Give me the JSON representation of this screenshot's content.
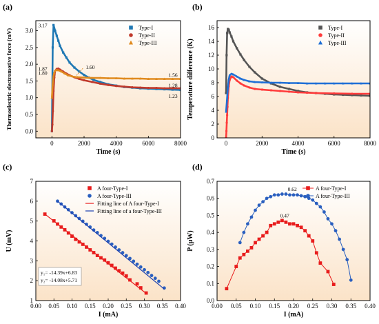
{
  "chart_data": [
    {
      "panel": "(a)",
      "type": "scatter",
      "xlabel": "Time (s)",
      "ylabel": "Thermoelectric electromotive force (mV)",
      "xlim": [
        -1000,
        8000
      ],
      "ylim": [
        -0.2,
        3.3
      ],
      "xticks": [
        0,
        2000,
        4000,
        6000,
        8000
      ],
      "yticks": [
        0.0,
        0.5,
        1.0,
        1.5,
        2.0,
        2.5,
        3.0
      ],
      "legend_position": "top-right",
      "annotations": [
        "3.17",
        "1.87",
        "1.80",
        "1.60",
        "1.56",
        "1.28",
        "1.23"
      ],
      "series": [
        {
          "name": "Type-I",
          "marker": "square",
          "color": "#1f78b4",
          "x": [
            0,
            50,
            100,
            200,
            300,
            400,
            500,
            700,
            900,
            1100,
            1400,
            1700,
            2000,
            2300,
            2600,
            3000,
            3500,
            4000,
            4500,
            5000,
            5500,
            6000,
            6500,
            7000,
            7500,
            8000
          ],
          "y": [
            0.0,
            2.5,
            3.17,
            3.0,
            2.85,
            2.7,
            2.55,
            2.35,
            2.2,
            2.05,
            1.9,
            1.78,
            1.68,
            1.6,
            1.53,
            1.47,
            1.4,
            1.36,
            1.32,
            1.3,
            1.28,
            1.27,
            1.26,
            1.25,
            1.24,
            1.23
          ]
        },
        {
          "name": "Type-II",
          "marker": "circle",
          "color": "#c0392b",
          "x": [
            0,
            30,
            60,
            100,
            150,
            200,
            300,
            400,
            500,
            700,
            900,
            1100,
            1400,
            1700,
            2000,
            2500,
            3000,
            3500,
            4000,
            4500,
            5000,
            5500,
            6000,
            6500,
            7000,
            7500,
            8000
          ],
          "y": [
            0.0,
            0.2,
            0.6,
            1.2,
            1.6,
            1.8,
            1.86,
            1.87,
            1.84,
            1.78,
            1.72,
            1.67,
            1.61,
            1.56,
            1.52,
            1.47,
            1.42,
            1.38,
            1.35,
            1.33,
            1.31,
            1.3,
            1.29,
            1.29,
            1.28,
            1.28,
            1.28
          ]
        },
        {
          "name": "Type-III",
          "marker": "triangle",
          "color": "#e08a1e",
          "x": [
            0,
            50,
            100,
            150,
            200,
            300,
            400,
            600,
            800,
            1000,
            1300,
            1600,
            2000,
            2500,
            3000,
            3500,
            4000,
            4500,
            5000,
            5500,
            6000,
            6500,
            7000,
            7500,
            8000
          ],
          "y": [
            1.0,
            1.4,
            1.65,
            1.75,
            1.8,
            1.83,
            1.82,
            1.78,
            1.72,
            1.67,
            1.63,
            1.61,
            1.6,
            1.59,
            1.59,
            1.58,
            1.58,
            1.57,
            1.57,
            1.57,
            1.56,
            1.56,
            1.56,
            1.56,
            1.56
          ]
        }
      ]
    },
    {
      "panel": "(b)",
      "type": "scatter",
      "xlabel": "Time (s)",
      "ylabel": "Temperature difference (K)",
      "xlim": [
        -500,
        8000
      ],
      "ylim": [
        0,
        17
      ],
      "xticks": [
        0,
        2000,
        4000,
        6000,
        8000
      ],
      "yticks": [
        0,
        2,
        4,
        6,
        8,
        10,
        12,
        14,
        16
      ],
      "legend_position": "top-right",
      "series": [
        {
          "name": "Type-I",
          "marker": "square",
          "color": "#555555",
          "x": [
            0,
            30,
            60,
            100,
            150,
            200,
            300,
            400,
            600,
            800,
            1000,
            1300,
            1600,
            2000,
            2500,
            3000,
            3500,
            4000,
            4500,
            5000,
            5500,
            6000,
            6500,
            7000,
            7500,
            8000
          ],
          "y": [
            6.5,
            12,
            15.2,
            15.8,
            15.7,
            15.3,
            14.7,
            14.0,
            13.0,
            12.1,
            11.3,
            10.3,
            9.5,
            8.6,
            7.9,
            7.4,
            7.1,
            6.8,
            6.6,
            6.5,
            6.4,
            6.3,
            6.25,
            6.2,
            6.15,
            6.1
          ]
        },
        {
          "name": "Type-II",
          "marker": "circle",
          "color": "#ff3b3b",
          "x": [
            0,
            20,
            40,
            60,
            80,
            100,
            150,
            200,
            300,
            400,
            600,
            800,
            1000,
            1300,
            1600,
            2000,
            2500,
            3000,
            3500,
            4000,
            4500,
            5000,
            6000,
            7000,
            8000
          ],
          "y": [
            0.0,
            1.0,
            2.2,
            3.3,
            4.5,
            5.8,
            7.5,
            8.4,
            8.9,
            8.8,
            8.3,
            7.9,
            7.6,
            7.3,
            7.1,
            7.0,
            6.9,
            6.8,
            6.7,
            6.6,
            6.55,
            6.5,
            6.45,
            6.4,
            6.4
          ]
        },
        {
          "name": "Type-III",
          "marker": "triangle",
          "color": "#1f6fd6",
          "x": [
            0,
            50,
            100,
            150,
            200,
            300,
            400,
            600,
            800,
            1000,
            1300,
            1600,
            2000,
            2500,
            3000,
            3500,
            4000,
            4500,
            5000,
            5500,
            6000,
            6500,
            7000,
            7500,
            8000
          ],
          "y": [
            3.8,
            5.5,
            7.3,
            8.5,
            9.1,
            9.3,
            9.2,
            8.9,
            8.6,
            8.4,
            8.2,
            8.1,
            8.05,
            8.0,
            8.0,
            7.95,
            7.95,
            7.9,
            7.9,
            7.9,
            7.9,
            7.9,
            7.9,
            7.9,
            7.9
          ]
        }
      ]
    },
    {
      "panel": "(c)",
      "type": "scatter",
      "xlabel": "I (mA)",
      "ylabel": "U (mV)",
      "xlim": [
        0.0,
        0.4
      ],
      "ylim": [
        1,
        7
      ],
      "xticks": [
        0.0,
        0.05,
        0.1,
        0.15,
        0.2,
        0.25,
        0.3,
        0.35,
        0.4
      ],
      "yticks": [
        1,
        2,
        3,
        4,
        5,
        6,
        7
      ],
      "legend_position": "top-right",
      "equations": [
        "y₁= -14.39x+6.83",
        "y₂= -14.08x+5.71"
      ],
      "series": [
        {
          "name": "A four-Type-I",
          "marker": "square",
          "color": "#e81c1c",
          "x": [
            0.025,
            0.05,
            0.06,
            0.07,
            0.08,
            0.09,
            0.1,
            0.11,
            0.12,
            0.13,
            0.14,
            0.15,
            0.16,
            0.17,
            0.18,
            0.19,
            0.2,
            0.21,
            0.22,
            0.23,
            0.24,
            0.25,
            0.26,
            0.28,
            0.29,
            0.305
          ],
          "y": [
            5.35,
            5.01,
            4.85,
            4.7,
            4.56,
            4.4,
            4.24,
            4.08,
            3.95,
            3.83,
            3.69,
            3.55,
            3.41,
            3.27,
            3.15,
            3.04,
            2.9,
            2.77,
            2.63,
            2.5,
            2.38,
            2.24,
            2.04,
            1.84,
            1.64,
            1.38
          ]
        },
        {
          "name": "A four-Type-III",
          "marker": "circle",
          "color": "#2a5fbf",
          "x": [
            0.06,
            0.07,
            0.08,
            0.09,
            0.1,
            0.11,
            0.12,
            0.13,
            0.14,
            0.15,
            0.16,
            0.17,
            0.18,
            0.19,
            0.2,
            0.21,
            0.22,
            0.23,
            0.24,
            0.25,
            0.26,
            0.27,
            0.28,
            0.29,
            0.3,
            0.31,
            0.32,
            0.33,
            0.34,
            0.355
          ],
          "y": [
            6.0,
            5.86,
            5.71,
            5.57,
            5.42,
            5.27,
            5.13,
            4.99,
            4.84,
            4.7,
            4.55,
            4.42,
            4.27,
            4.13,
            3.98,
            3.84,
            3.69,
            3.55,
            3.41,
            3.26,
            3.12,
            2.98,
            2.83,
            2.69,
            2.55,
            2.41,
            2.26,
            2.12,
            1.97,
            1.63
          ]
        },
        {
          "name": "Fitting line of A four-Type-I",
          "kind": "line",
          "color": "#e81c1c",
          "x": [
            0.025,
            0.305
          ],
          "y": [
            5.35,
            1.36
          ]
        },
        {
          "name": "Fitting line of a four-Type-III",
          "kind": "line",
          "color": "#1a3fb0",
          "x": [
            0.06,
            0.355
          ],
          "y": [
            6.0,
            1.58
          ]
        }
      ]
    },
    {
      "panel": "(d)",
      "type": "scatter",
      "xlabel": "I (mA)",
      "ylabel": "P (μW)",
      "xlim": [
        0.0,
        0.4
      ],
      "ylim": [
        0.0,
        0.7
      ],
      "xticks": [
        0.0,
        0.05,
        0.1,
        0.15,
        0.2,
        0.25,
        0.3,
        0.35,
        0.4
      ],
      "yticks": [
        0.0,
        0.1,
        0.2,
        0.3,
        0.4,
        0.5,
        0.6,
        0.7
      ],
      "legend_position": "top-right",
      "annotations": [
        "0.62",
        "0.47"
      ],
      "series": [
        {
          "name": "A four-Type-I",
          "marker": "square",
          "color": "#e81c1c",
          "x": [
            0.025,
            0.05,
            0.06,
            0.07,
            0.08,
            0.09,
            0.1,
            0.11,
            0.12,
            0.13,
            0.14,
            0.15,
            0.16,
            0.17,
            0.18,
            0.19,
            0.2,
            0.21,
            0.22,
            0.23,
            0.24,
            0.25,
            0.26,
            0.27,
            0.29,
            0.305
          ],
          "y": [
            0.07,
            0.2,
            0.25,
            0.27,
            0.29,
            0.31,
            0.34,
            0.36,
            0.38,
            0.4,
            0.44,
            0.45,
            0.46,
            0.47,
            0.46,
            0.45,
            0.45,
            0.44,
            0.43,
            0.41,
            0.38,
            0.35,
            0.28,
            0.22,
            0.17,
            0.095
          ]
        },
        {
          "name": "A four-Type-III",
          "marker": "circle",
          "color": "#2a5fbf",
          "x": [
            0.06,
            0.07,
            0.08,
            0.09,
            0.1,
            0.11,
            0.12,
            0.13,
            0.14,
            0.15,
            0.16,
            0.17,
            0.18,
            0.19,
            0.2,
            0.21,
            0.22,
            0.23,
            0.24,
            0.25,
            0.26,
            0.27,
            0.28,
            0.29,
            0.3,
            0.31,
            0.32,
            0.33,
            0.34,
            0.35
          ],
          "y": [
            0.34,
            0.4,
            0.45,
            0.49,
            0.53,
            0.56,
            0.58,
            0.6,
            0.61,
            0.62,
            0.62,
            0.625,
            0.625,
            0.62,
            0.62,
            0.62,
            0.615,
            0.61,
            0.6,
            0.59,
            0.57,
            0.55,
            0.52,
            0.48,
            0.45,
            0.41,
            0.36,
            0.3,
            0.24,
            0.12
          ]
        }
      ]
    }
  ]
}
